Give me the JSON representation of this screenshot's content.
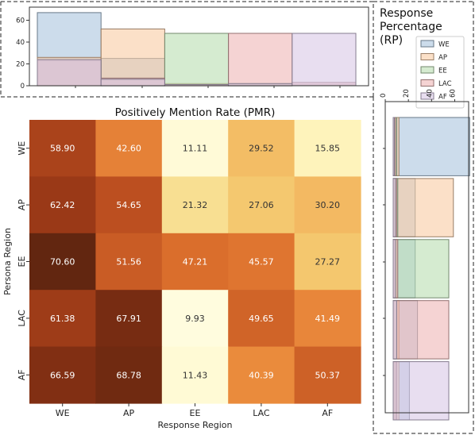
{
  "chart_data": [
    {
      "type": "heatmap",
      "title": "Positively Mention Rate (PMR)",
      "xlabel": "Response Region",
      "ylabel": "Persona Region",
      "x_categories": [
        "WE",
        "AP",
        "EE",
        "LAC",
        "AF"
      ],
      "y_categories": [
        "WE",
        "AP",
        "EE",
        "LAC",
        "AF"
      ],
      "values": [
        [
          58.9,
          42.6,
          11.11,
          29.52,
          15.85
        ],
        [
          62.42,
          54.65,
          21.32,
          27.06,
          30.2
        ],
        [
          70.6,
          51.56,
          47.21,
          45.57,
          27.27
        ],
        [
          61.38,
          67.91,
          9.93,
          49.65,
          41.49
        ],
        [
          66.59,
          68.78,
          11.43,
          40.39,
          50.37
        ]
      ],
      "value_labels": [
        [
          "58.90",
          "42.60",
          "11.11",
          "29.52",
          "15.85"
        ],
        [
          "62.42",
          "54.65",
          "21.32",
          "27.06",
          "30.20"
        ],
        [
          "70.60",
          "51.56",
          "47.21",
          "45.57",
          "27.27"
        ],
        [
          "61.38",
          "67.91",
          "9.93",
          "49.65",
          "41.49"
        ],
        [
          "66.59",
          "68.78",
          "11.43",
          "40.39",
          "50.37"
        ]
      ],
      "colormap": "YlOrBr",
      "vrange": [
        9,
        71
      ]
    },
    {
      "type": "bar",
      "subtype": "overlapping-histogram",
      "title": "Response Percentage (RP)",
      "categories": [
        "WE",
        "AP",
        "EE",
        "LAC",
        "AF"
      ],
      "ylim": [
        0,
        72
      ],
      "yticks": [
        0,
        20,
        40,
        60
      ],
      "legend_position": "top-right",
      "series": [
        {
          "name": "WE",
          "color": "#aac4dd",
          "values": [
            67,
            25,
            1,
            1,
            0.5
          ]
        },
        {
          "name": "AP",
          "color": "#f9cba4",
          "values": [
            26,
            52,
            2,
            1,
            0.5
          ]
        },
        {
          "name": "EE",
          "color": "#b9ddb1",
          "values": [
            23,
            6,
            48,
            2,
            0.5
          ]
        },
        {
          "name": "LAC",
          "color": "#eeb6b5",
          "values": [
            24,
            7,
            1,
            48,
            3
          ]
        },
        {
          "name": "AF",
          "color": "#d8c8e6",
          "values": [
            24,
            6,
            1,
            2,
            48
          ]
        }
      ]
    },
    {
      "type": "bar",
      "subtype": "overlapping-histogram-horizontal",
      "categories": [
        "WE",
        "AP",
        "EE",
        "LAC",
        "AF"
      ],
      "xlim": [
        0,
        72
      ],
      "xticks": [
        0,
        20,
        40,
        60
      ],
      "series": [
        {
          "name": "WE",
          "color": "#aac4dd",
          "values": [
            66,
            19,
            19,
            21,
            14
          ]
        },
        {
          "name": "AP",
          "color": "#f9cba4",
          "values": [
            5,
            52,
            3,
            5,
            5
          ]
        },
        {
          "name": "EE",
          "color": "#b9ddb1",
          "values": [
            3,
            4,
            48,
            3,
            2
          ]
        },
        {
          "name": "LAC",
          "color": "#eeb6b5",
          "values": [
            2,
            3,
            4,
            48,
            3
          ]
        },
        {
          "name": "AF",
          "color": "#d8c8e6",
          "values": [
            1,
            2,
            2,
            3,
            48
          ]
        }
      ]
    }
  ],
  "rp_title_lines": [
    "Response",
    "Percentage",
    "(RP)"
  ]
}
